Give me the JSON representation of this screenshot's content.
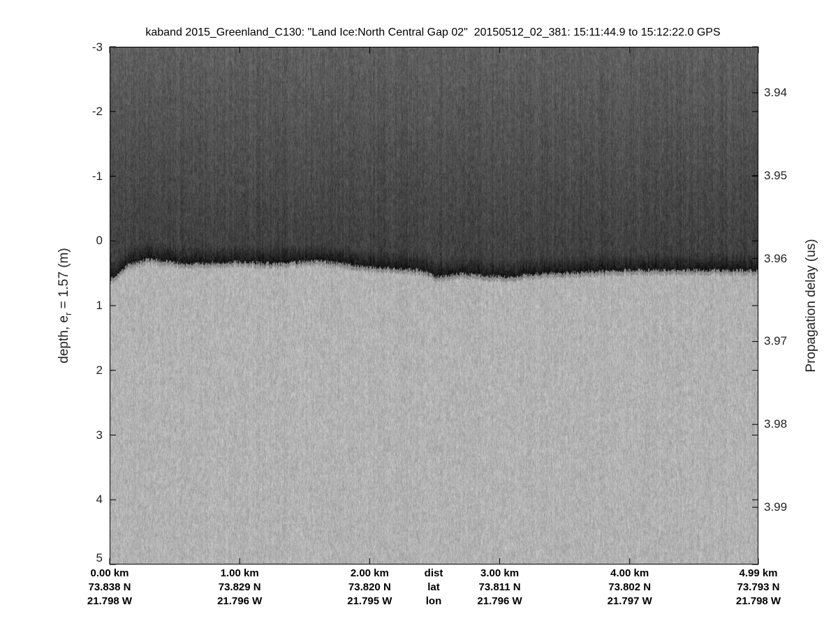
{
  "chart_data": {
    "type": "heatmap",
    "title": "kaband 2015_Greenland_C130: \"Land Ice:North Central Gap 02\"  20150512_02_381: 15:11:44.9 to 15:12:22.0 GPS",
    "ylabel_left": "depth, e",
    "ylabel_left_sub": "r",
    "ylabel_left_suffix": " = 1.57 (m)",
    "ylabel_right": "Propagation delay (us)",
    "ylim_left": [
      -3,
      5
    ],
    "yticks_left": [
      "-3",
      "-2",
      "-1",
      "0",
      "1",
      "2",
      "3",
      "4",
      "5"
    ],
    "yticks_right": [
      "3.94",
      "3.95",
      "3.96",
      "3.97",
      "3.98",
      "3.99"
    ],
    "colormap": "gray",
    "grid": false,
    "x_rows": {
      "labels": [
        "dist",
        "lat",
        "lon"
      ],
      "dist_km": [
        0.0,
        1.0,
        2.0,
        3.0,
        4.0,
        4.99
      ],
      "ticks": [
        {
          "dist": "0.00 km",
          "lat": "73.838 N",
          "lon": "21.798 W"
        },
        {
          "dist": "1.00 km",
          "lat": "73.829 N",
          "lon": "21.796 W"
        },
        {
          "dist": "2.00 km",
          "lat": "73.820 N",
          "lon": "21.795 W"
        },
        {
          "dist": "3.00 km",
          "lat": "73.811 N",
          "lon": "21.796 W"
        },
        {
          "dist": "4.00 km",
          "lat": "73.802 N",
          "lon": "21.797 W"
        },
        {
          "dist": "4.99 km",
          "lat": "73.793 N",
          "lon": "21.798 W"
        }
      ]
    },
    "surface_depth_m": {
      "dist_km": [
        0.0,
        0.15,
        0.3,
        0.6,
        1.0,
        1.3,
        1.6,
        2.0,
        2.4,
        2.5,
        2.7,
        3.0,
        3.1,
        3.3,
        3.6,
        4.0,
        4.5,
        4.99
      ],
      "depth": [
        0.6,
        0.35,
        0.28,
        0.35,
        0.32,
        0.35,
        0.3,
        0.4,
        0.45,
        0.55,
        0.5,
        0.55,
        0.55,
        0.5,
        0.48,
        0.45,
        0.45,
        0.45
      ]
    }
  }
}
